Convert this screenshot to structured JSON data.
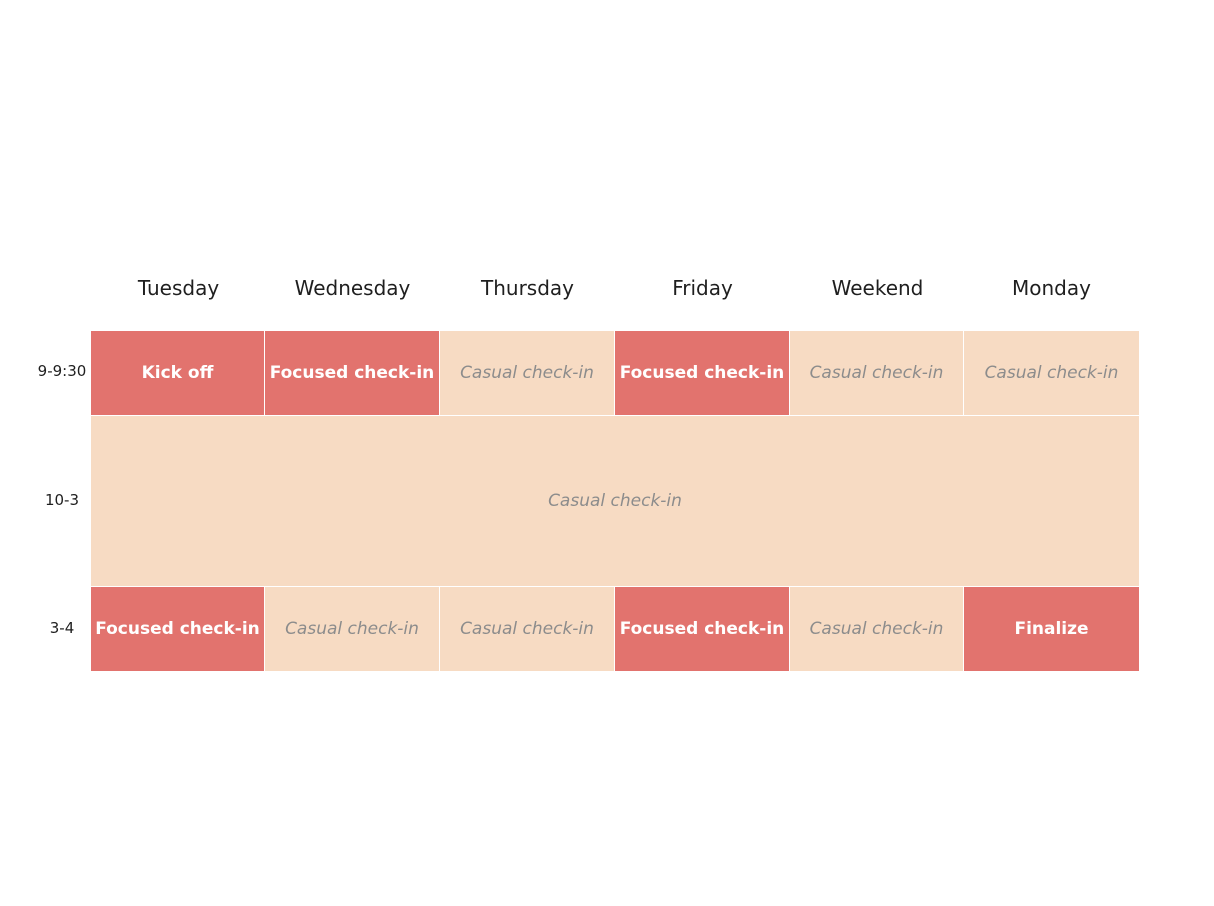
{
  "colors": {
    "focused": "#e2736e",
    "casual": "#f7dbc3",
    "focused_text": "#ffffff",
    "casual_text": "#8c8c8c"
  },
  "days": [
    "Tuesday",
    "Wednesday",
    "Thursday",
    "Friday",
    "Weekend",
    "Monday"
  ],
  "time_slots": [
    "9-9:30",
    "10-3",
    "3-4"
  ],
  "rows": [
    {
      "cells": [
        {
          "label": "Kick off",
          "kind": "focused"
        },
        {
          "label": "Focused check-in",
          "kind": "focused"
        },
        {
          "label": "Casual check-in",
          "kind": "casual"
        },
        {
          "label": "Focused check-in",
          "kind": "focused"
        },
        {
          "label": "Casual check-in",
          "kind": "casual"
        },
        {
          "label": "Casual check-in",
          "kind": "casual"
        }
      ]
    },
    {
      "cells": [
        {
          "label": "Casual check-in",
          "kind": "casual"
        }
      ]
    },
    {
      "cells": [
        {
          "label": "Focused check-in",
          "kind": "focused"
        },
        {
          "label": "Casual check-in",
          "kind": "casual"
        },
        {
          "label": "Casual check-in",
          "kind": "casual"
        },
        {
          "label": "Focused check-in",
          "kind": "focused"
        },
        {
          "label": "Casual check-in",
          "kind": "casual"
        },
        {
          "label": "Finalize",
          "kind": "focused"
        }
      ]
    }
  ]
}
